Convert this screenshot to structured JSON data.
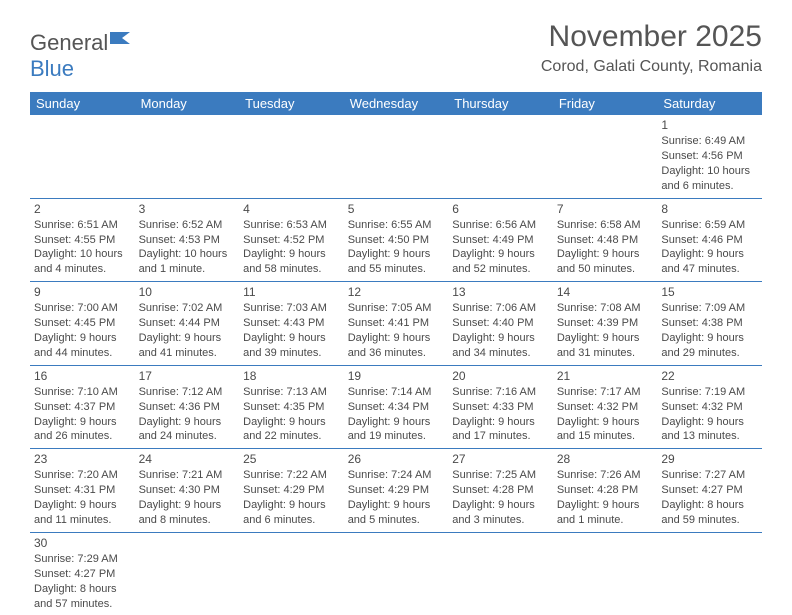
{
  "logo": {
    "text1": "General",
    "text2": "Blue"
  },
  "title": "November 2025",
  "location": "Corod, Galati County, Romania",
  "colors": {
    "header_bg": "#3b7bbf",
    "header_fg": "#ffffff",
    "text": "#4a4a4a",
    "rule": "#3b7bbf",
    "page_bg": "#ffffff"
  },
  "day_headers": [
    "Sunday",
    "Monday",
    "Tuesday",
    "Wednesday",
    "Thursday",
    "Friday",
    "Saturday"
  ],
  "weeks": [
    [
      null,
      null,
      null,
      null,
      null,
      null,
      {
        "n": "1",
        "sr": "Sunrise: 6:49 AM",
        "ss": "Sunset: 4:56 PM",
        "dl": "Daylight: 10 hours and 6 minutes."
      }
    ],
    [
      {
        "n": "2",
        "sr": "Sunrise: 6:51 AM",
        "ss": "Sunset: 4:55 PM",
        "dl": "Daylight: 10 hours and 4 minutes."
      },
      {
        "n": "3",
        "sr": "Sunrise: 6:52 AM",
        "ss": "Sunset: 4:53 PM",
        "dl": "Daylight: 10 hours and 1 minute."
      },
      {
        "n": "4",
        "sr": "Sunrise: 6:53 AM",
        "ss": "Sunset: 4:52 PM",
        "dl": "Daylight: 9 hours and 58 minutes."
      },
      {
        "n": "5",
        "sr": "Sunrise: 6:55 AM",
        "ss": "Sunset: 4:50 PM",
        "dl": "Daylight: 9 hours and 55 minutes."
      },
      {
        "n": "6",
        "sr": "Sunrise: 6:56 AM",
        "ss": "Sunset: 4:49 PM",
        "dl": "Daylight: 9 hours and 52 minutes."
      },
      {
        "n": "7",
        "sr": "Sunrise: 6:58 AM",
        "ss": "Sunset: 4:48 PM",
        "dl": "Daylight: 9 hours and 50 minutes."
      },
      {
        "n": "8",
        "sr": "Sunrise: 6:59 AM",
        "ss": "Sunset: 4:46 PM",
        "dl": "Daylight: 9 hours and 47 minutes."
      }
    ],
    [
      {
        "n": "9",
        "sr": "Sunrise: 7:00 AM",
        "ss": "Sunset: 4:45 PM",
        "dl": "Daylight: 9 hours and 44 minutes."
      },
      {
        "n": "10",
        "sr": "Sunrise: 7:02 AM",
        "ss": "Sunset: 4:44 PM",
        "dl": "Daylight: 9 hours and 41 minutes."
      },
      {
        "n": "11",
        "sr": "Sunrise: 7:03 AM",
        "ss": "Sunset: 4:43 PM",
        "dl": "Daylight: 9 hours and 39 minutes."
      },
      {
        "n": "12",
        "sr": "Sunrise: 7:05 AM",
        "ss": "Sunset: 4:41 PM",
        "dl": "Daylight: 9 hours and 36 minutes."
      },
      {
        "n": "13",
        "sr": "Sunrise: 7:06 AM",
        "ss": "Sunset: 4:40 PM",
        "dl": "Daylight: 9 hours and 34 minutes."
      },
      {
        "n": "14",
        "sr": "Sunrise: 7:08 AM",
        "ss": "Sunset: 4:39 PM",
        "dl": "Daylight: 9 hours and 31 minutes."
      },
      {
        "n": "15",
        "sr": "Sunrise: 7:09 AM",
        "ss": "Sunset: 4:38 PM",
        "dl": "Daylight: 9 hours and 29 minutes."
      }
    ],
    [
      {
        "n": "16",
        "sr": "Sunrise: 7:10 AM",
        "ss": "Sunset: 4:37 PM",
        "dl": "Daylight: 9 hours and 26 minutes."
      },
      {
        "n": "17",
        "sr": "Sunrise: 7:12 AM",
        "ss": "Sunset: 4:36 PM",
        "dl": "Daylight: 9 hours and 24 minutes."
      },
      {
        "n": "18",
        "sr": "Sunrise: 7:13 AM",
        "ss": "Sunset: 4:35 PM",
        "dl": "Daylight: 9 hours and 22 minutes."
      },
      {
        "n": "19",
        "sr": "Sunrise: 7:14 AM",
        "ss": "Sunset: 4:34 PM",
        "dl": "Daylight: 9 hours and 19 minutes."
      },
      {
        "n": "20",
        "sr": "Sunrise: 7:16 AM",
        "ss": "Sunset: 4:33 PM",
        "dl": "Daylight: 9 hours and 17 minutes."
      },
      {
        "n": "21",
        "sr": "Sunrise: 7:17 AM",
        "ss": "Sunset: 4:32 PM",
        "dl": "Daylight: 9 hours and 15 minutes."
      },
      {
        "n": "22",
        "sr": "Sunrise: 7:19 AM",
        "ss": "Sunset: 4:32 PM",
        "dl": "Daylight: 9 hours and 13 minutes."
      }
    ],
    [
      {
        "n": "23",
        "sr": "Sunrise: 7:20 AM",
        "ss": "Sunset: 4:31 PM",
        "dl": "Daylight: 9 hours and 11 minutes."
      },
      {
        "n": "24",
        "sr": "Sunrise: 7:21 AM",
        "ss": "Sunset: 4:30 PM",
        "dl": "Daylight: 9 hours and 8 minutes."
      },
      {
        "n": "25",
        "sr": "Sunrise: 7:22 AM",
        "ss": "Sunset: 4:29 PM",
        "dl": "Daylight: 9 hours and 6 minutes."
      },
      {
        "n": "26",
        "sr": "Sunrise: 7:24 AM",
        "ss": "Sunset: 4:29 PM",
        "dl": "Daylight: 9 hours and 5 minutes."
      },
      {
        "n": "27",
        "sr": "Sunrise: 7:25 AM",
        "ss": "Sunset: 4:28 PM",
        "dl": "Daylight: 9 hours and 3 minutes."
      },
      {
        "n": "28",
        "sr": "Sunrise: 7:26 AM",
        "ss": "Sunset: 4:28 PM",
        "dl": "Daylight: 9 hours and 1 minute."
      },
      {
        "n": "29",
        "sr": "Sunrise: 7:27 AM",
        "ss": "Sunset: 4:27 PM",
        "dl": "Daylight: 8 hours and 59 minutes."
      }
    ],
    [
      {
        "n": "30",
        "sr": "Sunrise: 7:29 AM",
        "ss": "Sunset: 4:27 PM",
        "dl": "Daylight: 8 hours and 57 minutes."
      },
      null,
      null,
      null,
      null,
      null,
      null
    ]
  ]
}
